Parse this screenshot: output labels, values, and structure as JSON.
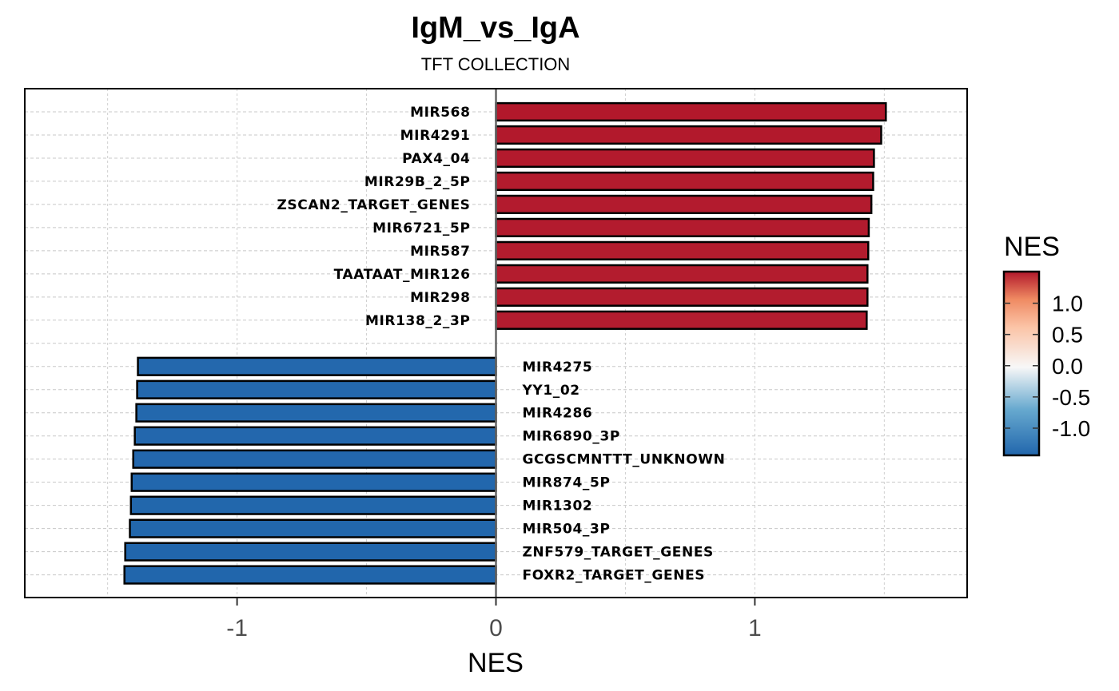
{
  "chart_data": {
    "type": "bar",
    "orientation": "horizontal",
    "title": "IgM_vs_IgA",
    "subtitle": "TFT COLLECTION",
    "xlabel": "NES",
    "ylabel": "",
    "xlim": [
      -1.82,
      1.82
    ],
    "x_ticks": [
      -1,
      0,
      1
    ],
    "x_tick_labels": [
      "-1",
      "0",
      "1"
    ],
    "grid": true,
    "legend": {
      "title": "NES",
      "type": "colorbar",
      "placement": "right",
      "range": [
        -1.435,
        1.506
      ],
      "ticks": [
        1.0,
        0.5,
        0.0,
        -0.5,
        -1.0
      ],
      "tick_labels": [
        "1.0",
        "0.5",
        "0.0",
        "-0.5",
        "-1.0"
      ],
      "colors": {
        "low": "#2166ac",
        "mid": "#f7f7f7",
        "high": "#b2182b"
      }
    },
    "positive_bars": [
      {
        "label": "MIR568",
        "value": 1.506
      },
      {
        "label": "MIR4291",
        "value": 1.488
      },
      {
        "label": "PAX4_04",
        "value": 1.46
      },
      {
        "label": "MIR29B_2_5P",
        "value": 1.457
      },
      {
        "label": "ZSCAN2_TARGET_GENES",
        "value": 1.45
      },
      {
        "label": "MIR6721_5P",
        "value": 1.44
      },
      {
        "label": "MIR587",
        "value": 1.438
      },
      {
        "label": "TAATAAT_MIR126",
        "value": 1.435
      },
      {
        "label": "MIR298",
        "value": 1.435
      },
      {
        "label": "MIR138_2_3P",
        "value": 1.432
      }
    ],
    "negative_bars": [
      {
        "label": "MIR4275",
        "value": -1.383
      },
      {
        "label": "YY1_02",
        "value": -1.386
      },
      {
        "label": "MIR4286",
        "value": -1.389
      },
      {
        "label": "MIR6890_3P",
        "value": -1.395
      },
      {
        "label": "GCGSCMNTTT_UNKNOWN",
        "value": -1.401
      },
      {
        "label": "MIR874_5P",
        "value": -1.407
      },
      {
        "label": "MIR1302",
        "value": -1.41
      },
      {
        "label": "MIR504_3P",
        "value": -1.414
      },
      {
        "label": "ZNF579_TARGET_GENES",
        "value": -1.432
      },
      {
        "label": "FOXR2_TARGET_GENES",
        "value": -1.435
      }
    ]
  }
}
